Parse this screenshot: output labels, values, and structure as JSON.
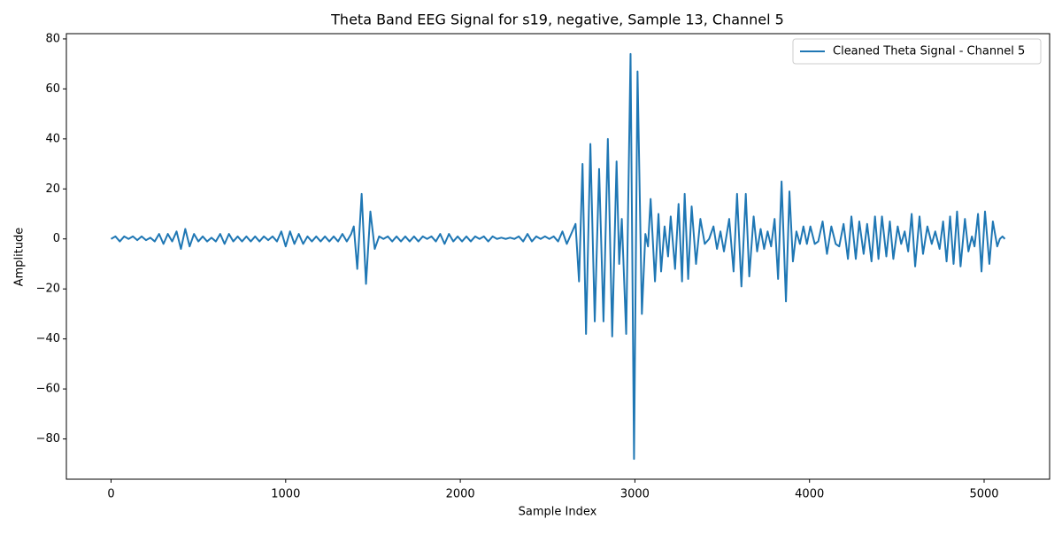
{
  "chart_data": {
    "type": "line",
    "title": "Theta Band EEG Signal for s19, negative, Sample 13, Channel 5",
    "x_label": "Sample Index",
    "y_label": "Amplitude",
    "legend": "upper right",
    "x": [
      0,
      25,
      50,
      75,
      100,
      125,
      150,
      175,
      200,
      225,
      250,
      275,
      300,
      325,
      350,
      375,
      400,
      425,
      450,
      475,
      500,
      525,
      550,
      575,
      600,
      625,
      650,
      675,
      700,
      725,
      750,
      775,
      800,
      825,
      850,
      875,
      900,
      925,
      950,
      975,
      1000,
      1025,
      1050,
      1075,
      1100,
      1125,
      1150,
      1175,
      1200,
      1225,
      1250,
      1275,
      1300,
      1325,
      1350,
      1375,
      1390,
      1410,
      1435,
      1460,
      1485,
      1510,
      1535,
      1560,
      1585,
      1610,
      1635,
      1660,
      1685,
      1710,
      1735,
      1760,
      1785,
      1810,
      1835,
      1860,
      1885,
      1910,
      1935,
      1960,
      1985,
      2010,
      2035,
      2060,
      2085,
      2110,
      2135,
      2160,
      2185,
      2210,
      2235,
      2260,
      2285,
      2310,
      2335,
      2360,
      2385,
      2410,
      2435,
      2460,
      2485,
      2510,
      2535,
      2560,
      2585,
      2610,
      2635,
      2660,
      2680,
      2700,
      2720,
      2745,
      2770,
      2795,
      2820,
      2845,
      2870,
      2895,
      2910,
      2925,
      2950,
      2975,
      2995,
      3015,
      3040,
      3060,
      3075,
      3090,
      3115,
      3135,
      3150,
      3170,
      3190,
      3205,
      3230,
      3250,
      3270,
      3285,
      3305,
      3325,
      3350,
      3375,
      3400,
      3425,
      3450,
      3470,
      3490,
      3510,
      3540,
      3565,
      3585,
      3610,
      3635,
      3655,
      3680,
      3700,
      3720,
      3740,
      3760,
      3780,
      3800,
      3820,
      3840,
      3865,
      3885,
      3905,
      3925,
      3945,
      3965,
      3985,
      4005,
      4030,
      4050,
      4075,
      4100,
      4125,
      4150,
      4170,
      4195,
      4220,
      4240,
      4265,
      4285,
      4310,
      4330,
      4355,
      4375,
      4395,
      4415,
      4440,
      4460,
      4480,
      4505,
      4525,
      4545,
      4565,
      4585,
      4605,
      4630,
      4650,
      4675,
      4700,
      4720,
      4745,
      4765,
      4785,
      4805,
      4825,
      4845,
      4865,
      4890,
      4910,
      4930,
      4945,
      4965,
      4985,
      5005,
      5030,
      5050,
      5075,
      5090,
      5105,
      5119
    ],
    "series": [
      {
        "name": "Cleaned Theta Signal - Channel 5",
        "color": "#1f77b4",
        "values": [
          0,
          1,
          -1,
          1,
          0,
          1,
          -0.5,
          1,
          -0.5,
          0.5,
          -1,
          2,
          -2,
          2,
          -1,
          3,
          -4,
          4,
          -3,
          2,
          -1,
          1,
          -1,
          0.5,
          -1,
          2,
          -2,
          2,
          -1,
          1,
          -1,
          1,
          -1,
          1,
          -1,
          1,
          -0.5,
          1,
          -1,
          3,
          -3,
          3,
          -2,
          2,
          -2,
          1,
          -1,
          1,
          -1,
          1,
          -1,
          1,
          -1,
          2,
          -1,
          2,
          5,
          -12,
          18,
          -18,
          11,
          -4,
          1,
          0,
          1,
          -1,
          1,
          -1,
          1,
          -1,
          1,
          -1,
          1,
          0,
          1,
          -1,
          2,
          -2,
          2,
          -1,
          1,
          -1,
          1,
          -1,
          1,
          0,
          1,
          -1,
          1,
          0,
          0.5,
          0,
          0.5,
          0,
          1,
          -1,
          2,
          -1,
          1,
          0,
          1,
          0,
          1,
          -1,
          3,
          -2,
          2,
          6,
          -17,
          30,
          -38,
          38,
          -33,
          28,
          -33,
          40,
          -39,
          31,
          -10,
          8,
          -38,
          74,
          -88,
          67,
          -30,
          2,
          -3,
          16,
          -17,
          10,
          -13,
          5,
          -7,
          9,
          -12,
          14,
          -17,
          18,
          -16,
          13,
          -10,
          8,
          -2,
          0,
          5,
          -4,
          3,
          -5,
          8,
          -13,
          18,
          -19,
          18,
          -15,
          9,
          -5,
          4,
          -4,
          3,
          -3,
          8,
          -16,
          23,
          -25,
          19,
          -9,
          3,
          -2,
          5,
          -2,
          5,
          -2,
          -1,
          7,
          -6,
          5,
          -2,
          -3,
          6,
          -8,
          9,
          -8,
          7,
          -6,
          6,
          -9,
          9,
          -8,
          9,
          -7,
          7,
          -8,
          5,
          -2,
          3,
          -5,
          10,
          -11,
          9,
          -6,
          5,
          -2,
          3,
          -4,
          7,
          -9,
          9,
          -10,
          11,
          -11,
          8,
          -5,
          1,
          -3,
          10,
          -13,
          11,
          -10,
          7,
          -3,
          0,
          1,
          0
        ]
      }
    ],
    "xlim": [
      -256,
      5375
    ],
    "xticks": [
      0,
      1000,
      2000,
      3000,
      4000,
      5000
    ],
    "ylim": [
      -96.1,
      82.1
    ],
    "yticks": [
      {
        "value": -80,
        "label": "−80"
      },
      {
        "value": -60,
        "label": "−60"
      },
      {
        "value": -40,
        "label": "−40"
      },
      {
        "value": -20,
        "label": "−20"
      },
      0,
      20,
      40,
      60,
      80
    ],
    "grid": false
  }
}
